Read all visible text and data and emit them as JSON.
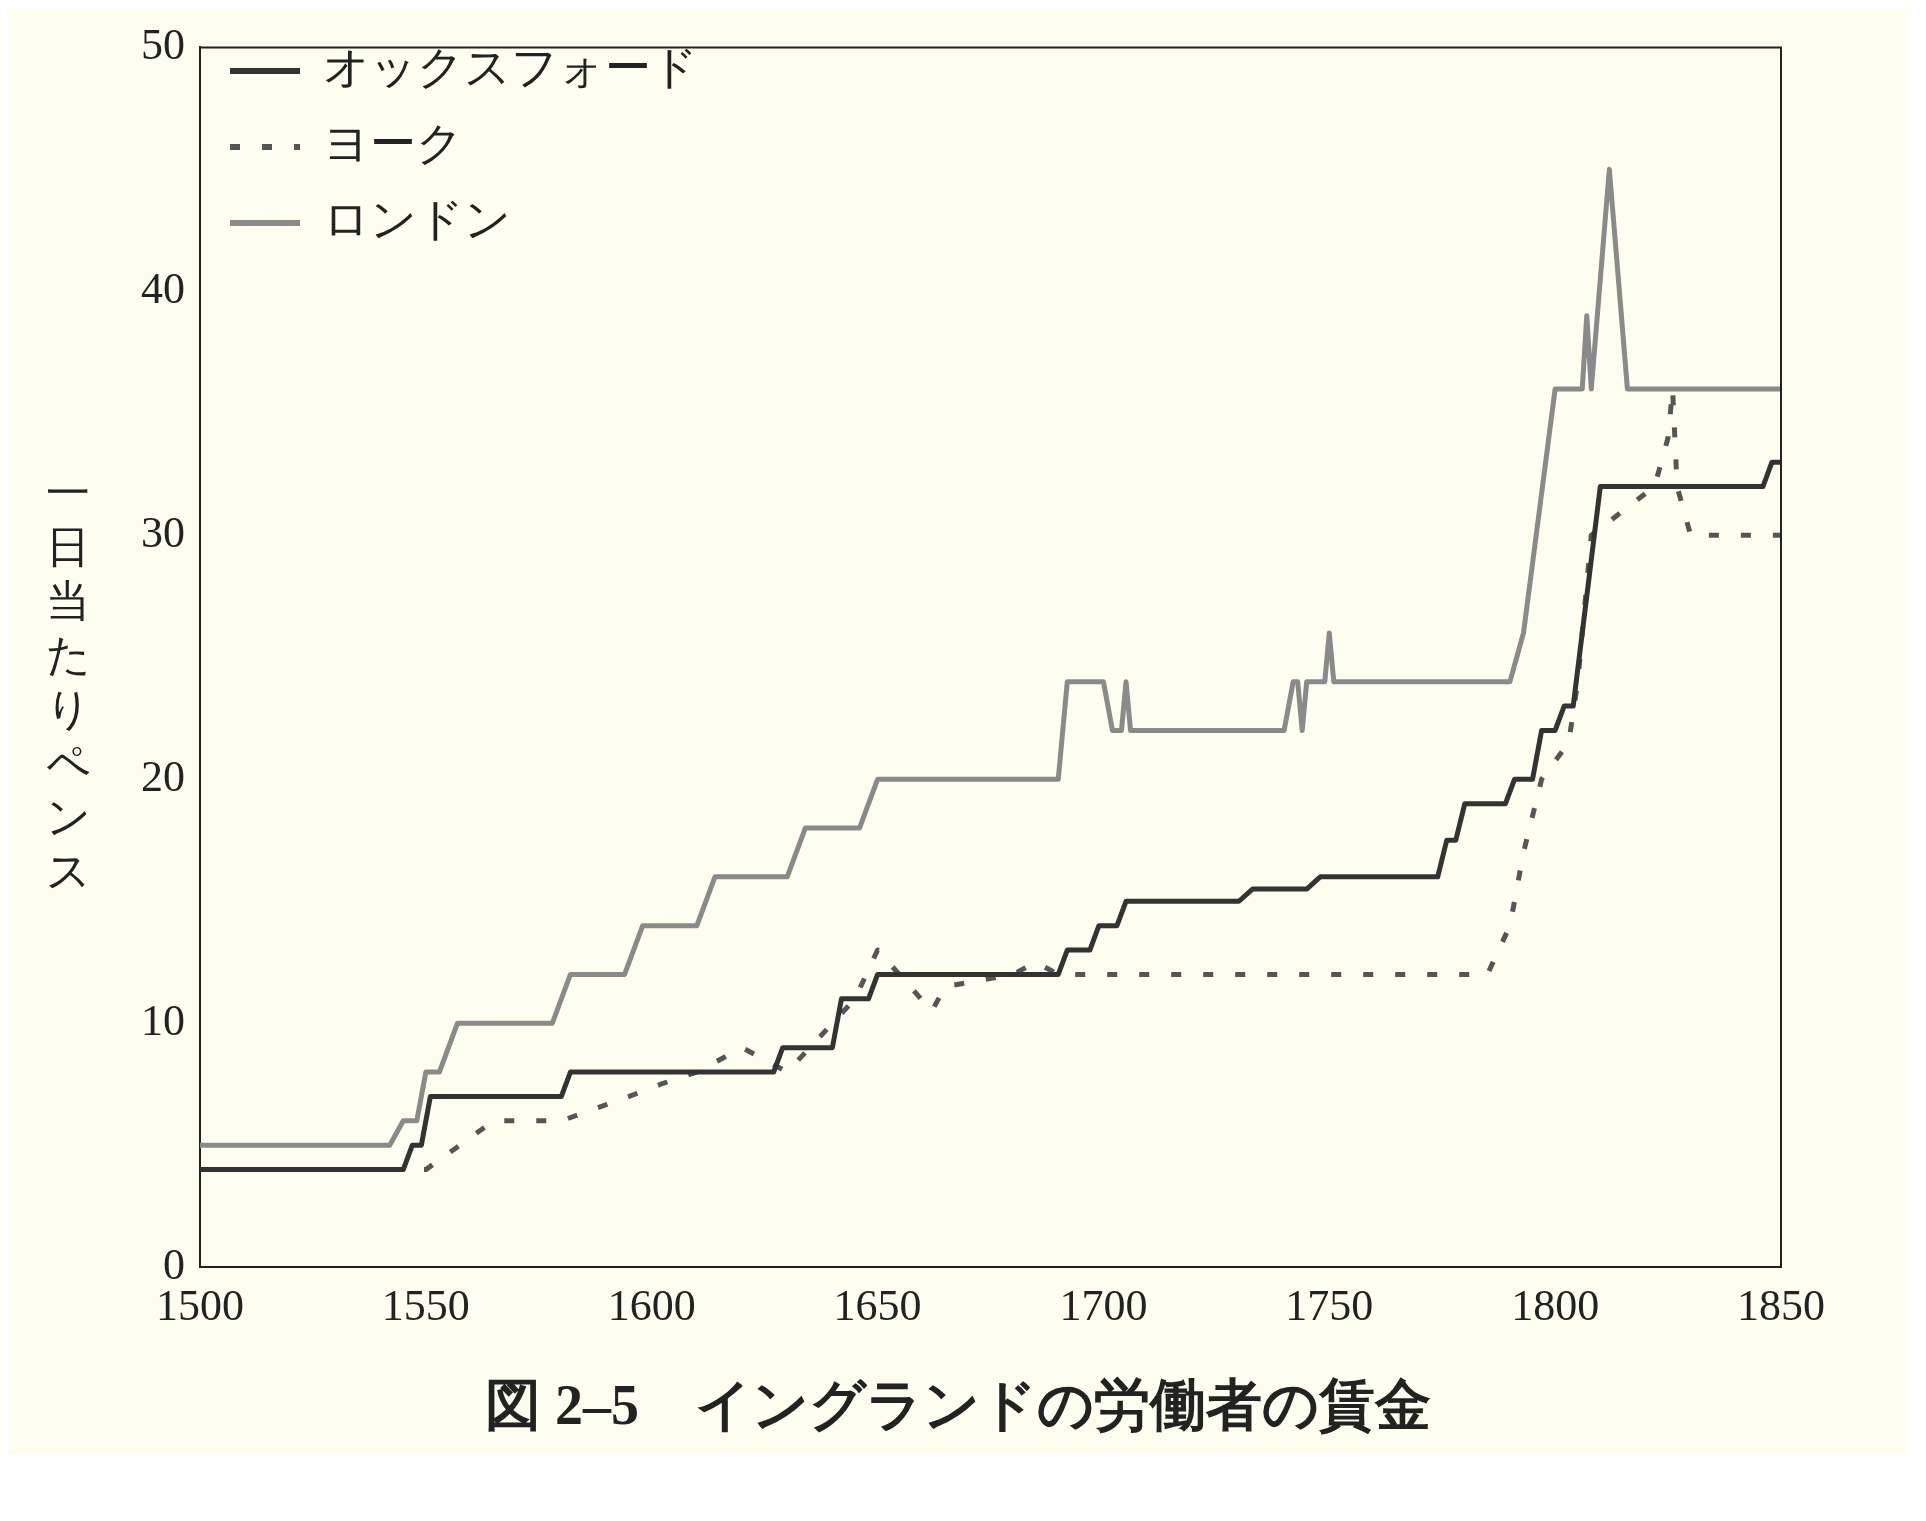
{
  "chart_data": {
    "type": "line",
    "title": "図 2–5　イングランドの労働者の賃金",
    "ylabel": "一日当たりペンス",
    "xlim": [
      1500,
      1850
    ],
    "xticks": [
      1500,
      1550,
      1600,
      1650,
      1700,
      1750,
      1800,
      1850
    ],
    "ylim": [
      0,
      50
    ],
    "yticks": [
      0,
      10,
      20,
      30,
      40,
      50
    ],
    "grid": false,
    "legend": "top left",
    "marker": "none",
    "series": [
      {
        "name": "オックスフォード",
        "color": "#333333",
        "line_style": "solid",
        "x": [
          1500,
          1545,
          1547,
          1549,
          1551,
          1580,
          1582,
          1627,
          1629,
          1640,
          1642,
          1648,
          1650,
          1690,
          1692,
          1697,
          1699,
          1703,
          1705,
          1730,
          1733,
          1745,
          1748,
          1774,
          1776,
          1778,
          1780,
          1789,
          1791,
          1795,
          1797,
          1800,
          1802,
          1804,
          1806,
          1808,
          1810,
          1846,
          1848,
          1850
        ],
        "values": [
          4,
          4,
          5,
          5,
          7,
          7,
          8,
          8,
          9,
          9,
          11,
          11,
          12,
          12,
          13,
          13,
          14,
          14,
          15,
          15,
          15.5,
          15.5,
          16,
          16,
          17.5,
          17.5,
          19,
          19,
          20,
          20,
          22,
          22,
          23,
          23,
          26,
          29,
          32,
          32,
          33,
          33
        ]
      },
      {
        "name": "ヨーク",
        "color": "#555555",
        "line_style": "dashed",
        "x": [
          1500,
          1545,
          1550,
          1565,
          1580,
          1595,
          1602,
          1610,
          1620,
          1630,
          1640,
          1645,
          1650,
          1662,
          1665,
          1680,
          1685,
          1690,
          1785,
          1790,
          1793,
          1797,
          1803,
          1805,
          1808,
          1822,
          1825,
          1826,
          1827,
          1830,
          1850
        ],
        "values": [
          4,
          4,
          4,
          6,
          6,
          7,
          7.5,
          8,
          9,
          8,
          10,
          11,
          13,
          10.5,
          11.5,
          12,
          12.5,
          12,
          12,
          14,
          17,
          20,
          21.5,
          24,
          30,
          32,
          34,
          36,
          32,
          30,
          30
        ]
      },
      {
        "name": "ロンドン",
        "color": "#8a8a8a",
        "line_style": "solid",
        "x": [
          1500,
          1542,
          1545,
          1548,
          1550,
          1553,
          1557,
          1578,
          1582,
          1594,
          1598,
          1610,
          1614,
          1630,
          1634,
          1646,
          1650,
          1690,
          1692,
          1700,
          1702,
          1704,
          1705,
          1706,
          1708,
          1740,
          1742,
          1743,
          1744,
          1745,
          1749,
          1750,
          1751,
          1790,
          1793,
          1800,
          1806,
          1807,
          1808,
          1812,
          1816,
          1850
        ],
        "values": [
          5,
          5,
          6,
          6,
          8,
          8,
          10,
          10,
          12,
          12,
          14,
          14,
          16,
          16,
          18,
          18,
          20,
          20,
          24,
          24,
          22,
          22,
          24,
          22,
          22,
          22,
          24,
          24,
          22,
          24,
          24,
          26,
          24,
          24,
          26,
          36,
          36,
          39,
          36,
          45,
          36,
          36
        ]
      }
    ]
  }
}
